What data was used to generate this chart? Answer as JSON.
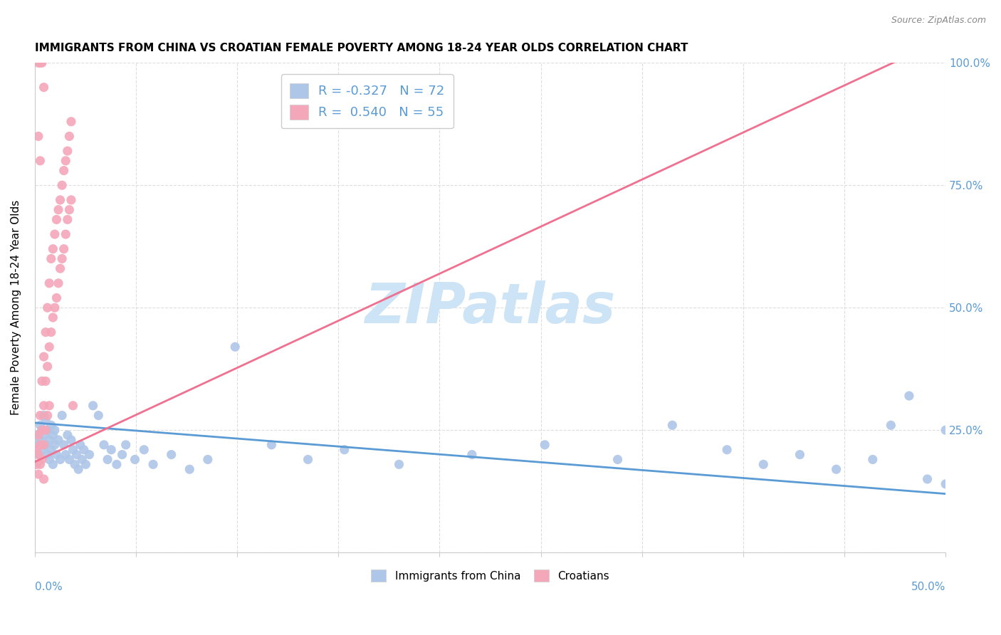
{
  "title": "IMMIGRANTS FROM CHINA VS CROATIAN FEMALE POVERTY AMONG 18-24 YEAR OLDS CORRELATION CHART",
  "source": "Source: ZipAtlas.com",
  "ylabel": "Female Poverty Among 18-24 Year Olds",
  "ytick_labels": [
    "",
    "25.0%",
    "50.0%",
    "75.0%",
    "100.0%"
  ],
  "xmin": 0.0,
  "xmax": 0.5,
  "ymin": 0.0,
  "ymax": 1.0,
  "china_color": "#aec6e8",
  "croatian_color": "#f4a7b9",
  "china_line_color": "#5b9bd5",
  "croatian_line_color": "#f07090",
  "watermark": "ZIPatlas",
  "watermark_color": "#cce4f5",
  "china_R": -0.327,
  "croatian_R": 0.54,
  "china_N": 72,
  "croatian_N": 55,
  "legend_R_color": "#5b9bd5",
  "legend_label_color": "#333333",
  "china_trend": [
    0.0,
    0.265,
    0.5,
    0.12
  ],
  "croatian_trend": [
    0.0,
    0.185,
    0.5,
    1.05
  ],
  "china_points": [
    [
      0.001,
      0.24
    ],
    [
      0.002,
      0.22
    ],
    [
      0.002,
      0.2
    ],
    [
      0.003,
      0.26
    ],
    [
      0.003,
      0.23
    ],
    [
      0.004,
      0.25
    ],
    [
      0.004,
      0.21
    ],
    [
      0.005,
      0.28
    ],
    [
      0.005,
      0.24
    ],
    [
      0.006,
      0.27
    ],
    [
      0.006,
      0.22
    ],
    [
      0.007,
      0.25
    ],
    [
      0.007,
      0.2
    ],
    [
      0.008,
      0.23
    ],
    [
      0.008,
      0.19
    ],
    [
      0.009,
      0.26
    ],
    [
      0.009,
      0.21
    ],
    [
      0.01,
      0.24
    ],
    [
      0.01,
      0.18
    ],
    [
      0.011,
      0.22
    ],
    [
      0.011,
      0.25
    ],
    [
      0.012,
      0.2
    ],
    [
      0.013,
      0.23
    ],
    [
      0.014,
      0.19
    ],
    [
      0.015,
      0.28
    ],
    [
      0.016,
      0.22
    ],
    [
      0.017,
      0.2
    ],
    [
      0.018,
      0.24
    ],
    [
      0.019,
      0.19
    ],
    [
      0.02,
      0.23
    ],
    [
      0.021,
      0.21
    ],
    [
      0.022,
      0.18
    ],
    [
      0.023,
      0.2
    ],
    [
      0.024,
      0.17
    ],
    [
      0.025,
      0.22
    ],
    [
      0.026,
      0.19
    ],
    [
      0.027,
      0.21
    ],
    [
      0.028,
      0.18
    ],
    [
      0.03,
      0.2
    ],
    [
      0.032,
      0.3
    ],
    [
      0.035,
      0.28
    ],
    [
      0.038,
      0.22
    ],
    [
      0.04,
      0.19
    ],
    [
      0.042,
      0.21
    ],
    [
      0.045,
      0.18
    ],
    [
      0.048,
      0.2
    ],
    [
      0.05,
      0.22
    ],
    [
      0.055,
      0.19
    ],
    [
      0.06,
      0.21
    ],
    [
      0.065,
      0.18
    ],
    [
      0.075,
      0.2
    ],
    [
      0.085,
      0.17
    ],
    [
      0.095,
      0.19
    ],
    [
      0.11,
      0.42
    ],
    [
      0.13,
      0.22
    ],
    [
      0.15,
      0.19
    ],
    [
      0.17,
      0.21
    ],
    [
      0.2,
      0.18
    ],
    [
      0.24,
      0.2
    ],
    [
      0.28,
      0.22
    ],
    [
      0.32,
      0.19
    ],
    [
      0.35,
      0.26
    ],
    [
      0.38,
      0.21
    ],
    [
      0.4,
      0.18
    ],
    [
      0.42,
      0.2
    ],
    [
      0.44,
      0.17
    ],
    [
      0.46,
      0.19
    ],
    [
      0.47,
      0.26
    ],
    [
      0.49,
      0.15
    ],
    [
      0.5,
      0.25
    ],
    [
      0.5,
      0.14
    ],
    [
      0.48,
      0.32
    ]
  ],
  "croatian_points": [
    [
      0.001,
      0.21
    ],
    [
      0.001,
      0.18
    ],
    [
      0.002,
      0.24
    ],
    [
      0.002,
      0.2
    ],
    [
      0.002,
      0.16
    ],
    [
      0.003,
      0.28
    ],
    [
      0.003,
      0.22
    ],
    [
      0.003,
      0.18
    ],
    [
      0.004,
      0.35
    ],
    [
      0.004,
      0.25
    ],
    [
      0.004,
      0.19
    ],
    [
      0.005,
      0.4
    ],
    [
      0.005,
      0.3
    ],
    [
      0.005,
      0.22
    ],
    [
      0.005,
      0.15
    ],
    [
      0.006,
      0.45
    ],
    [
      0.006,
      0.35
    ],
    [
      0.006,
      0.25
    ],
    [
      0.007,
      0.5
    ],
    [
      0.007,
      0.38
    ],
    [
      0.007,
      0.28
    ],
    [
      0.008,
      0.55
    ],
    [
      0.008,
      0.42
    ],
    [
      0.008,
      0.3
    ],
    [
      0.009,
      0.6
    ],
    [
      0.009,
      0.45
    ],
    [
      0.01,
      0.62
    ],
    [
      0.01,
      0.48
    ],
    [
      0.011,
      0.65
    ],
    [
      0.011,
      0.5
    ],
    [
      0.012,
      0.68
    ],
    [
      0.012,
      0.52
    ],
    [
      0.013,
      0.7
    ],
    [
      0.013,
      0.55
    ],
    [
      0.014,
      0.72
    ],
    [
      0.014,
      0.58
    ],
    [
      0.015,
      0.75
    ],
    [
      0.015,
      0.6
    ],
    [
      0.016,
      0.78
    ],
    [
      0.016,
      0.62
    ],
    [
      0.017,
      0.8
    ],
    [
      0.017,
      0.65
    ],
    [
      0.018,
      0.82
    ],
    [
      0.018,
      0.68
    ],
    [
      0.019,
      0.85
    ],
    [
      0.019,
      0.7
    ],
    [
      0.02,
      0.88
    ],
    [
      0.02,
      0.72
    ],
    [
      0.002,
      1.0
    ],
    [
      0.003,
      1.0
    ],
    [
      0.004,
      1.0
    ],
    [
      0.002,
      0.85
    ],
    [
      0.005,
      0.95
    ],
    [
      0.003,
      0.8
    ],
    [
      0.021,
      0.3
    ]
  ]
}
